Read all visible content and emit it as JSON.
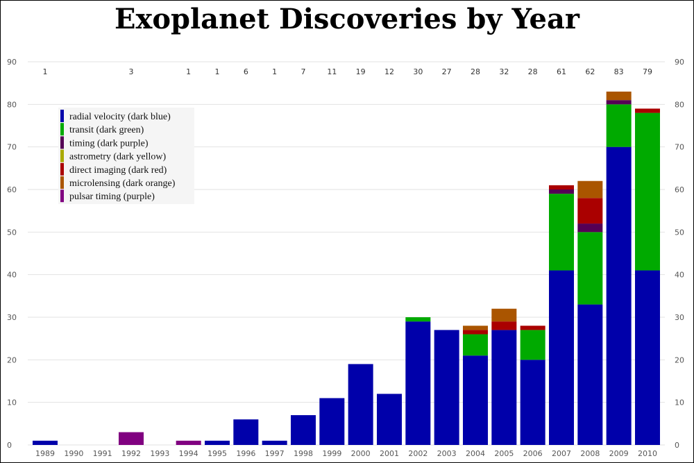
{
  "chart_data": {
    "type": "bar",
    "stacked": true,
    "title": "Exoplanet Discoveries by Year",
    "xlabel": "",
    "ylabel": "",
    "ylim": [
      0,
      90
    ],
    "yticks": [
      0,
      10,
      20,
      30,
      40,
      50,
      60,
      70,
      80,
      90
    ],
    "grid": true,
    "legend_position": "top-left",
    "categories": [
      "1989",
      "1990",
      "1991",
      "1992",
      "1993",
      "1994",
      "1995",
      "1996",
      "1997",
      "1998",
      "1999",
      "2000",
      "2001",
      "2002",
      "2003",
      "2004",
      "2005",
      "2006",
      "2007",
      "2008",
      "2009",
      "2010"
    ],
    "totals": [
      "1",
      "",
      "",
      "3",
      "",
      "1",
      "1",
      "6",
      "1",
      "7",
      "11",
      "19",
      "12",
      "30",
      "27",
      "28",
      "32",
      "28",
      "61",
      "62",
      "83",
      "79"
    ],
    "series": [
      {
        "name": "radial velocity (dark blue)",
        "color": "#0000aa",
        "values": [
          1,
          0,
          0,
          0,
          0,
          0,
          1,
          6,
          1,
          7,
          11,
          19,
          12,
          29,
          27,
          21,
          27,
          20,
          41,
          33,
          70,
          41
        ]
      },
      {
        "name": "transit (dark green)",
        "color": "#00aa00",
        "values": [
          0,
          0,
          0,
          0,
          0,
          0,
          0,
          0,
          0,
          0,
          0,
          0,
          0,
          1,
          0,
          5,
          0,
          7,
          18,
          17,
          10,
          37
        ]
      },
      {
        "name": "timing (dark purple)",
        "color": "#550055",
        "values": [
          0,
          0,
          0,
          0,
          0,
          0,
          0,
          0,
          0,
          0,
          0,
          0,
          0,
          0,
          0,
          0,
          0,
          0,
          1,
          2,
          1,
          0
        ]
      },
      {
        "name": "astrometry (dark yellow)",
        "color": "#aaaa00",
        "values": [
          0,
          0,
          0,
          0,
          0,
          0,
          0,
          0,
          0,
          0,
          0,
          0,
          0,
          0,
          0,
          0,
          0,
          0,
          0,
          0,
          0,
          0
        ]
      },
      {
        "name": "direct imaging (dark red)",
        "color": "#aa0000",
        "values": [
          0,
          0,
          0,
          0,
          0,
          0,
          0,
          0,
          0,
          0,
          0,
          0,
          0,
          0,
          0,
          1,
          2,
          1,
          1,
          6,
          0,
          1
        ]
      },
      {
        "name": "microlensing (dark orange)",
        "color": "#aa5500",
        "values": [
          0,
          0,
          0,
          0,
          0,
          0,
          0,
          0,
          0,
          0,
          0,
          0,
          0,
          0,
          0,
          1,
          3,
          0,
          0,
          4,
          2,
          0
        ]
      },
      {
        "name": "pulsar timing (purple)",
        "color": "#800080",
        "values": [
          0,
          0,
          0,
          3,
          0,
          1,
          0,
          0,
          0,
          0,
          0,
          0,
          0,
          0,
          0,
          0,
          0,
          0,
          0,
          0,
          0,
          0
        ]
      }
    ]
  }
}
